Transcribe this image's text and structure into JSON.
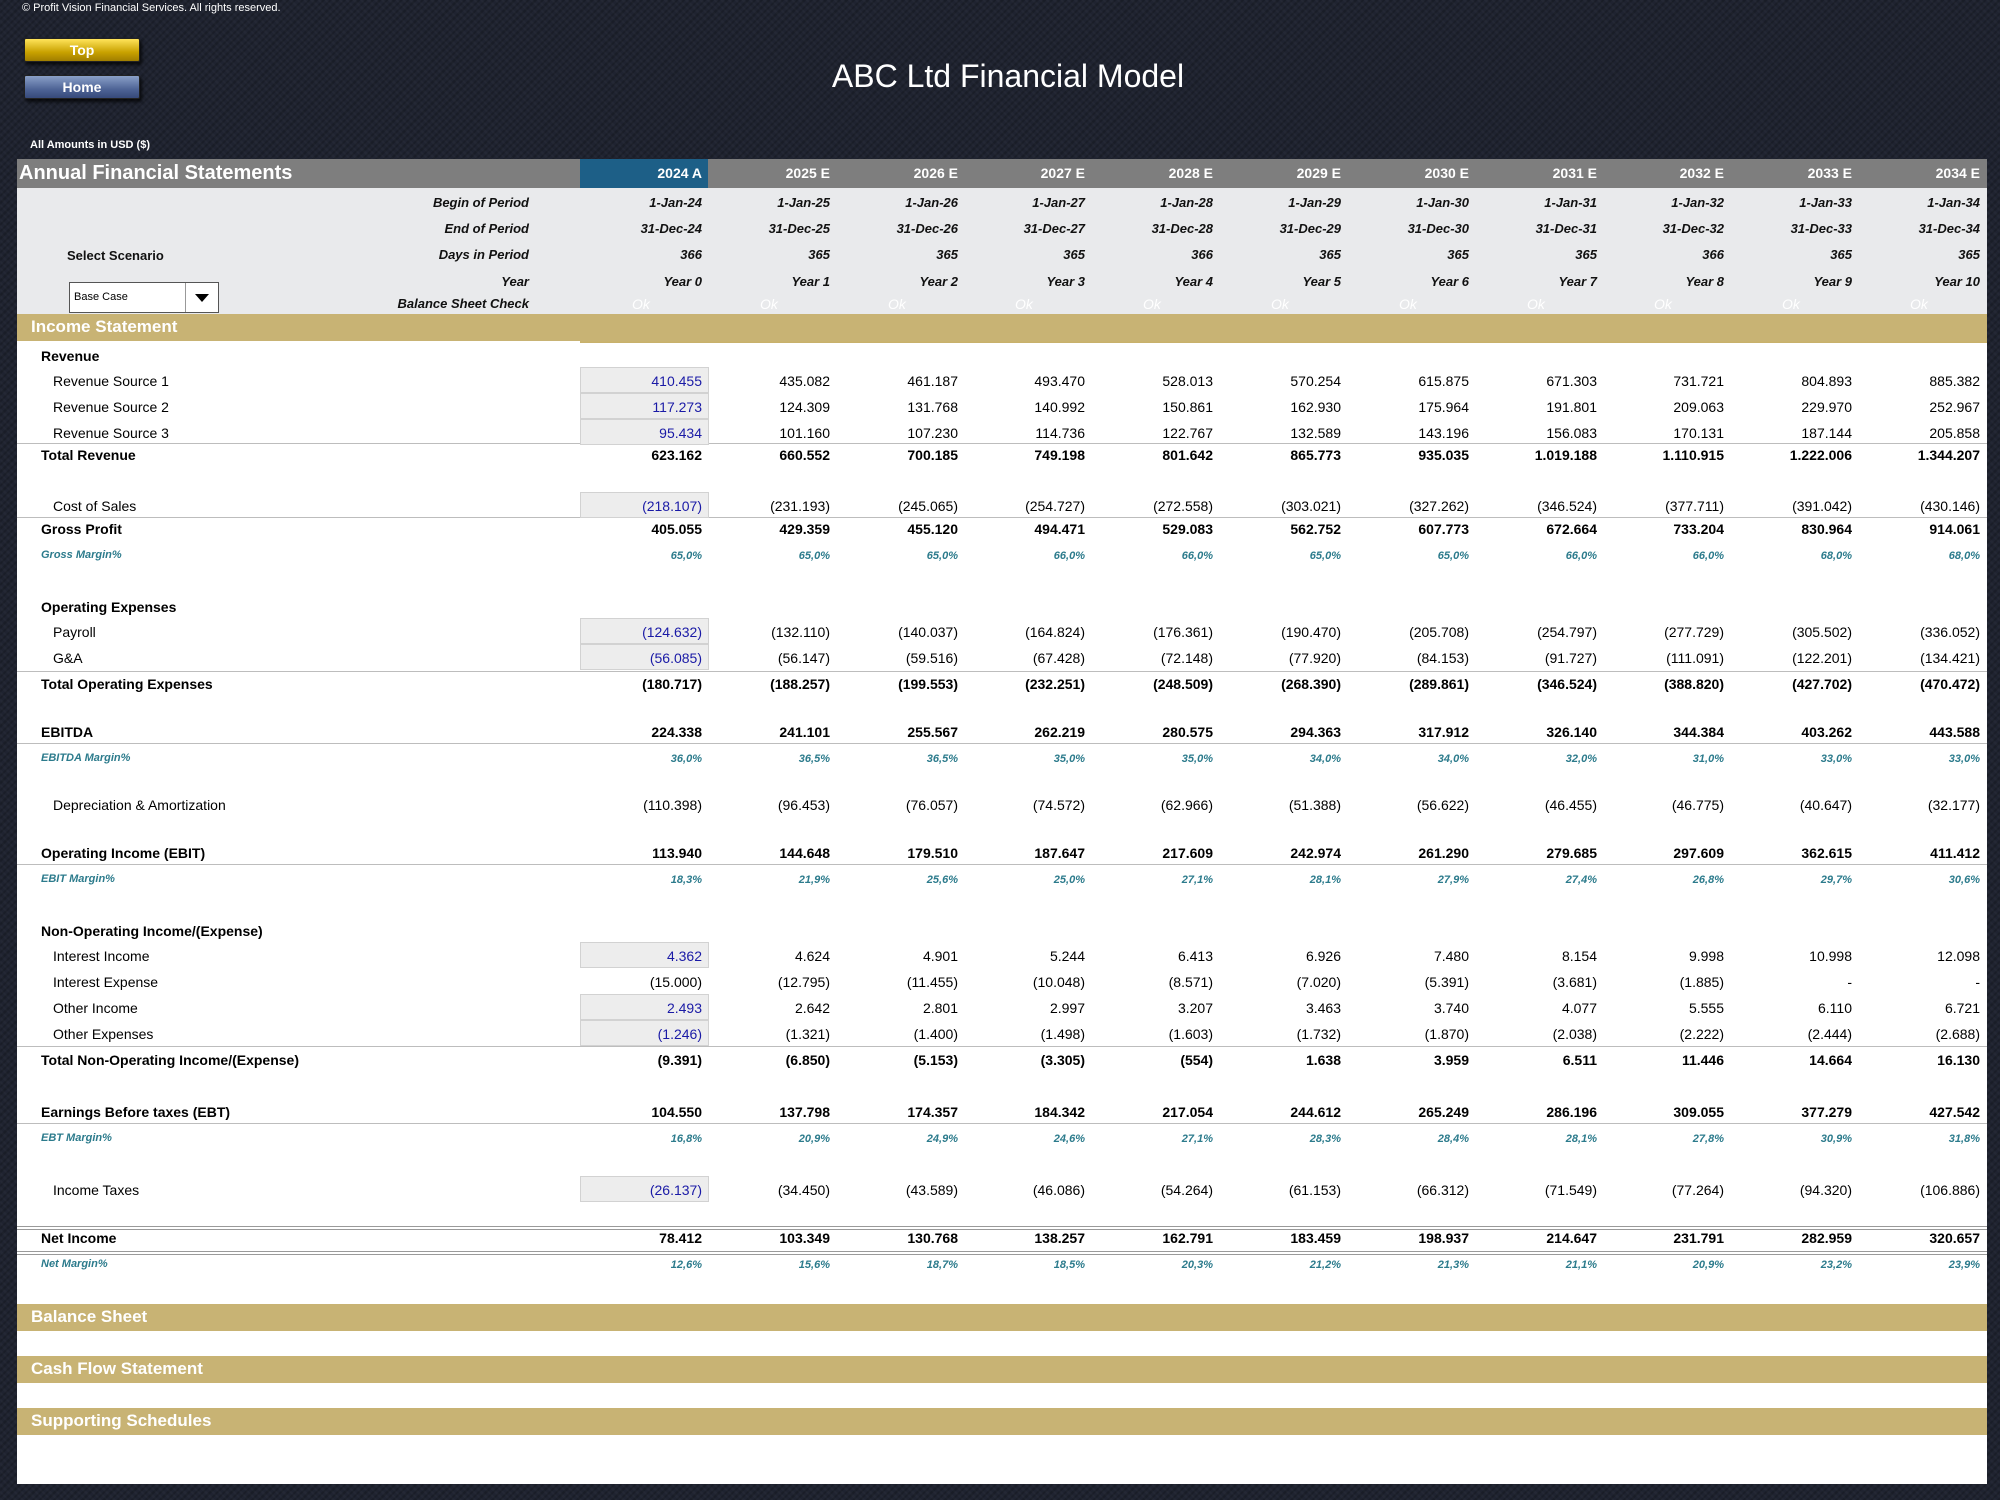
{
  "copyright": "© Profit Vision Financial Services. All rights reserved.",
  "buttons": {
    "top": "Top",
    "home": "Home"
  },
  "title": "ABC Ltd Financial Model",
  "amounts_label": "All Amounts in  USD ($)",
  "sheet_title": "Annual Financial Statements",
  "years": [
    "2024 A",
    "2025 E",
    "2026 E",
    "2027 E",
    "2028 E",
    "2029 E",
    "2030 E",
    "2031 E",
    "2032 E",
    "2033 E",
    "2034 E"
  ],
  "timing": {
    "select_label": "Select Scenario",
    "scenario_value": "Base Case",
    "labels": {
      "begin": "Begin of Period",
      "end": "End of Period",
      "days": "Days in Period",
      "year": "Year",
      "check": "Balance Sheet Check"
    },
    "begin": [
      "1-Jan-24",
      "1-Jan-25",
      "1-Jan-26",
      "1-Jan-27",
      "1-Jan-28",
      "1-Jan-29",
      "1-Jan-30",
      "1-Jan-31",
      "1-Jan-32",
      "1-Jan-33",
      "1-Jan-34"
    ],
    "end": [
      "31-Dec-24",
      "31-Dec-25",
      "31-Dec-26",
      "31-Dec-27",
      "31-Dec-28",
      "31-Dec-29",
      "31-Dec-30",
      "31-Dec-31",
      "31-Dec-32",
      "31-Dec-33",
      "31-Dec-34"
    ],
    "days": [
      "366",
      "365",
      "365",
      "365",
      "366",
      "365",
      "365",
      "365",
      "366",
      "365",
      "365"
    ],
    "year": [
      "Year 0",
      "Year 1",
      "Year 2",
      "Year 3",
      "Year 4",
      "Year 5",
      "Year 6",
      "Year 7",
      "Year 8",
      "Year 9",
      "Year 10"
    ],
    "check": [
      "Ok",
      "Ok",
      "Ok",
      "Ok",
      "Ok",
      "Ok",
      "Ok",
      "Ok",
      "Ok",
      "Ok",
      "Ok"
    ]
  },
  "sections": {
    "income": "Income Statement",
    "balance": "Balance Sheet",
    "cashflow": "Cash Flow Statement",
    "supporting": "Supporting Schedules"
  },
  "rows": {
    "revenue_hdr": {
      "label": "Revenue"
    },
    "rev1": {
      "label": "Revenue Source 1",
      "values": [
        "410.455",
        "435.082",
        "461.187",
        "493.470",
        "528.013",
        "570.254",
        "615.875",
        "671.303",
        "731.721",
        "804.893",
        "885.382"
      ]
    },
    "rev2": {
      "label": "Revenue Source 2",
      "values": [
        "117.273",
        "124.309",
        "131.768",
        "140.992",
        "150.861",
        "162.930",
        "175.964",
        "191.801",
        "209.063",
        "229.970",
        "252.967"
      ]
    },
    "rev3": {
      "label": "Revenue Source 3",
      "values": [
        "95.434",
        "101.160",
        "107.230",
        "114.736",
        "122.767",
        "132.589",
        "143.196",
        "156.083",
        "170.131",
        "187.144",
        "205.858"
      ]
    },
    "total_rev": {
      "label": "Total Revenue",
      "values": [
        "623.162",
        "660.552",
        "700.185",
        "749.198",
        "801.642",
        "865.773",
        "935.035",
        "1.019.188",
        "1.110.915",
        "1.222.006",
        "1.344.207"
      ]
    },
    "cos": {
      "label": "Cost of Sales",
      "values": [
        "(218.107)",
        "(231.193)",
        "(245.065)",
        "(254.727)",
        "(272.558)",
        "(303.021)",
        "(327.262)",
        "(346.524)",
        "(377.711)",
        "(391.042)",
        "(430.146)"
      ]
    },
    "gross_profit": {
      "label": "Gross Profit",
      "values": [
        "405.055",
        "429.359",
        "455.120",
        "494.471",
        "529.083",
        "562.752",
        "607.773",
        "672.664",
        "733.204",
        "830.964",
        "914.061"
      ]
    },
    "gross_margin": {
      "label": "Gross Margin%",
      "values": [
        "65,0%",
        "65,0%",
        "65,0%",
        "66,0%",
        "66,0%",
        "65,0%",
        "65,0%",
        "66,0%",
        "66,0%",
        "68,0%",
        "68,0%"
      ]
    },
    "opex_hdr": {
      "label": "Operating Expenses"
    },
    "payroll": {
      "label": "Payroll",
      "values": [
        "(124.632)",
        "(132.110)",
        "(140.037)",
        "(164.824)",
        "(176.361)",
        "(190.470)",
        "(205.708)",
        "(254.797)",
        "(277.729)",
        "(305.502)",
        "(336.052)"
      ]
    },
    "ga": {
      "label": "G&A",
      "values": [
        "(56.085)",
        "(56.147)",
        "(59.516)",
        "(67.428)",
        "(72.148)",
        "(77.920)",
        "(84.153)",
        "(91.727)",
        "(111.091)",
        "(122.201)",
        "(134.421)"
      ]
    },
    "total_opex": {
      "label": "Total Operating Expenses",
      "values": [
        "(180.717)",
        "(188.257)",
        "(199.553)",
        "(232.251)",
        "(248.509)",
        "(268.390)",
        "(289.861)",
        "(346.524)",
        "(388.820)",
        "(427.702)",
        "(470.472)"
      ]
    },
    "ebitda": {
      "label": "EBITDA",
      "values": [
        "224.338",
        "241.101",
        "255.567",
        "262.219",
        "280.575",
        "294.363",
        "317.912",
        "326.140",
        "344.384",
        "403.262",
        "443.588"
      ]
    },
    "ebitda_margin": {
      "label": "EBITDA Margin%",
      "values": [
        "36,0%",
        "36,5%",
        "36,5%",
        "35,0%",
        "35,0%",
        "34,0%",
        "34,0%",
        "32,0%",
        "31,0%",
        "33,0%",
        "33,0%"
      ]
    },
    "da": {
      "label": "Depreciation & Amortization",
      "values": [
        "(110.398)",
        "(96.453)",
        "(76.057)",
        "(74.572)",
        "(62.966)",
        "(51.388)",
        "(56.622)",
        "(46.455)",
        "(46.775)",
        "(40.647)",
        "(32.177)"
      ]
    },
    "ebit": {
      "label": "Operating Income (EBIT)",
      "values": [
        "113.940",
        "144.648",
        "179.510",
        "187.647",
        "217.609",
        "242.974",
        "261.290",
        "279.685",
        "297.609",
        "362.615",
        "411.412"
      ]
    },
    "ebit_margin": {
      "label": "EBIT Margin%",
      "values": [
        "18,3%",
        "21,9%",
        "25,6%",
        "25,0%",
        "27,1%",
        "28,1%",
        "27,9%",
        "27,4%",
        "26,8%",
        "29,7%",
        "30,6%"
      ]
    },
    "nonop_hdr": {
      "label": "Non-Operating Income/(Expense)"
    },
    "int_inc": {
      "label": "Interest Income",
      "values": [
        "4.362",
        "4.624",
        "4.901",
        "5.244",
        "6.413",
        "6.926",
        "7.480",
        "8.154",
        "9.998",
        "10.998",
        "12.098"
      ]
    },
    "int_exp": {
      "label": "Interest Expense",
      "values": [
        "(15.000)",
        "(12.795)",
        "(11.455)",
        "(10.048)",
        "(8.571)",
        "(7.020)",
        "(5.391)",
        "(3.681)",
        "(1.885)",
        "-",
        "-"
      ]
    },
    "oth_inc": {
      "label": "Other Income",
      "values": [
        "2.493",
        "2.642",
        "2.801",
        "2.997",
        "3.207",
        "3.463",
        "3.740",
        "4.077",
        "5.555",
        "6.110",
        "6.721"
      ]
    },
    "oth_exp": {
      "label": "Other Expenses",
      "values": [
        "(1.246)",
        "(1.321)",
        "(1.400)",
        "(1.498)",
        "(1.603)",
        "(1.732)",
        "(1.870)",
        "(2.038)",
        "(2.222)",
        "(2.444)",
        "(2.688)"
      ]
    },
    "total_nonop": {
      "label": "Total Non-Operating Income/(Expense)",
      "values": [
        "(9.391)",
        "(6.850)",
        "(5.153)",
        "(3.305)",
        "(554)",
        "1.638",
        "3.959",
        "6.511",
        "11.446",
        "14.664",
        "16.130"
      ]
    },
    "ebt": {
      "label": "Earnings Before taxes (EBT)",
      "values": [
        "104.550",
        "137.798",
        "174.357",
        "184.342",
        "217.054",
        "244.612",
        "265.249",
        "286.196",
        "309.055",
        "377.279",
        "427.542"
      ]
    },
    "ebt_margin": {
      "label": "EBT Margin%",
      "values": [
        "16,8%",
        "20,9%",
        "24,9%",
        "24,6%",
        "27,1%",
        "28,3%",
        "28,4%",
        "28,1%",
        "27,8%",
        "30,9%",
        "31,8%"
      ]
    },
    "taxes": {
      "label": "Income Taxes",
      "values": [
        "(26.137)",
        "(34.450)",
        "(43.589)",
        "(46.086)",
        "(54.264)",
        "(61.153)",
        "(66.312)",
        "(71.549)",
        "(77.264)",
        "(94.320)",
        "(106.886)"
      ]
    },
    "net_income": {
      "label": "Net Income",
      "values": [
        "78.412",
        "103.349",
        "130.768",
        "138.257",
        "162.791",
        "183.459",
        "198.937",
        "214.647",
        "231.791",
        "282.959",
        "320.657"
      ]
    },
    "net_margin": {
      "label": "Net Margin%",
      "values": [
        "12,6%",
        "15,6%",
        "18,7%",
        "18,5%",
        "20,3%",
        "21,2%",
        "21,3%",
        "21,1%",
        "20,9%",
        "23,2%",
        "23,9%"
      ]
    }
  },
  "colors": {
    "header_blue": "#1d5f87",
    "section_gold": "#c8b374",
    "input_blue": "#1a1aa6",
    "margin_teal": "#2c7b8c"
  }
}
